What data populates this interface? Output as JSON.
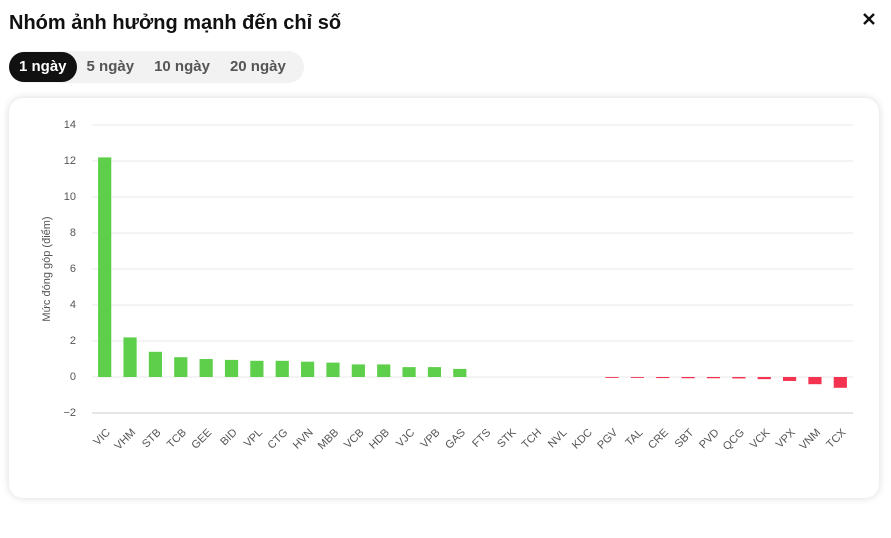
{
  "header": {
    "title": "Nhóm ảnh hưởng mạnh đến chỉ số"
  },
  "tabs": [
    "1 ngày",
    "5 ngày",
    "10 ngày",
    "20 ngày"
  ],
  "chart_data": {
    "type": "bar",
    "y_label": "Mức đóng góp (điểm)",
    "categories": [
      "VIC",
      "VHM",
      "STB",
      "TCB",
      "GEE",
      "BID",
      "VPL",
      "CTG",
      "HVN",
      "MBB",
      "VCB",
      "HDB",
      "VJC",
      "VPB",
      "GAS",
      "FTS",
      "STK",
      "TCH",
      "NVL",
      "KDC",
      "PGV",
      "TAL",
      "CRE",
      "SBT",
      "PVD",
      "QCG",
      "VCK",
      "VPX",
      "VNM",
      "TCX"
    ],
    "values": [
      12.2,
      2.2,
      1.4,
      1.1,
      1.0,
      0.95,
      0.9,
      0.9,
      0.85,
      0.8,
      0.7,
      0.7,
      0.55,
      0.55,
      0.45,
      0,
      0,
      0,
      0,
      0,
      -0.05,
      -0.05,
      -0.06,
      -0.07,
      -0.07,
      -0.08,
      -0.12,
      -0.22,
      -0.4,
      -0.6
    ],
    "positive_color": "#5ecf4a",
    "negative_color": "#f3334f",
    "ylim": [
      -2,
      14
    ],
    "yticks": [
      {
        "value": -2,
        "label": "−2"
      },
      0,
      2,
      4,
      6,
      8,
      10,
      12,
      14
    ],
    "grid": true
  }
}
